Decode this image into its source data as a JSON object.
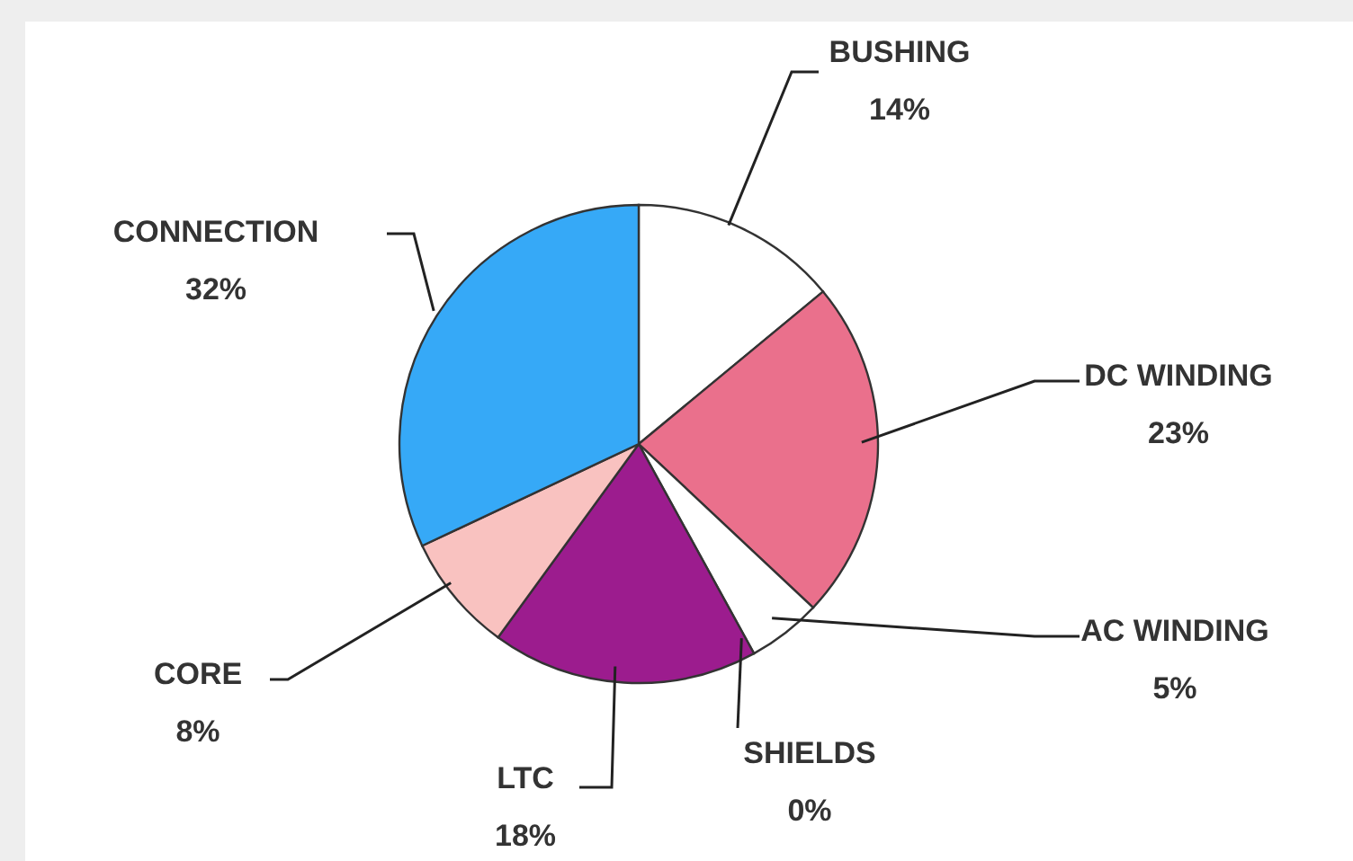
{
  "chart_data": {
    "type": "pie",
    "categories": [
      "BUSHING",
      "DC WINDING",
      "AC WINDING",
      "SHIELDS",
      "LTC",
      "CORE",
      "CONNECTION"
    ],
    "values": [
      14,
      23,
      5,
      0,
      18,
      8,
      32
    ],
    "value_labels": [
      "14%",
      "23%",
      "5%",
      "0%",
      "18%",
      "8%",
      "32%"
    ],
    "colors": [
      "#ffffff",
      "#ea708c",
      "#ffffff",
      "#ffffff",
      "#9c1c8e",
      "#f9c2c0",
      "#36a9f7"
    ],
    "legend": false
  }
}
